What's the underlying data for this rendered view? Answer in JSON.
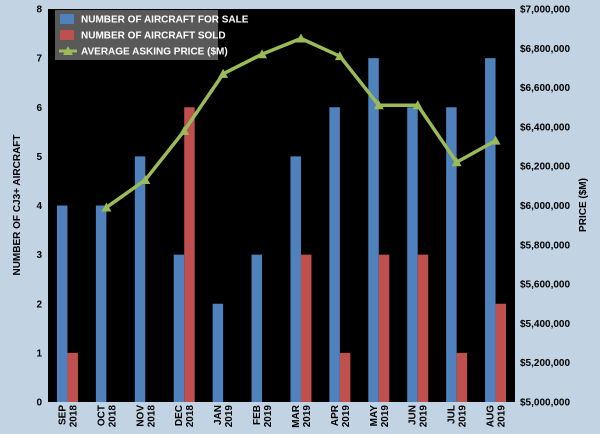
{
  "chart_data": {
    "type": "bar",
    "categories": [
      "SEP 2018",
      "OCT 2018",
      "NOV 2018",
      "DEC 2018",
      "JAN 2019",
      "FEB 2019",
      "MAR 2019",
      "APR 2019",
      "MAY 2019",
      "JUN 2019",
      "JUL 2019",
      "AUG 2019"
    ],
    "categories_top": [
      "SEP",
      "OCT",
      "NOV",
      "DEC",
      "JAN",
      "FEB",
      "MAR",
      "APR",
      "MAY",
      "JUN",
      "JUL",
      "AUG"
    ],
    "categories_bottom": [
      "2018",
      "2018",
      "2018",
      "2018",
      "2019",
      "2019",
      "2019",
      "2019",
      "2019",
      "2019",
      "2019",
      "2019"
    ],
    "series": [
      {
        "name": "NUMBER OF AIRCRAFT FOR SALE",
        "type": "bar",
        "axis": "left",
        "color": "#4f81bd",
        "values": [
          4,
          4,
          5,
          3,
          2,
          3,
          5,
          6,
          7,
          6,
          6,
          7
        ]
      },
      {
        "name": "NUMBER OF AIRCRAFT SOLD",
        "type": "bar",
        "axis": "left",
        "color": "#c0504d",
        "values": [
          1,
          0,
          0,
          6,
          0,
          0,
          3,
          1,
          3,
          3,
          1,
          2
        ]
      },
      {
        "name": "AVERAGE ASKING PRICE ($M)",
        "type": "line",
        "axis": "right",
        "color": "#9bbb59",
        "values": [
          null,
          5990000,
          6130000,
          6380000,
          6670000,
          6770000,
          6850000,
          6760000,
          6510000,
          6510000,
          6220000,
          6330000
        ]
      }
    ],
    "ylabel": "NUMBER OF CJ3+ AIRCRAFT",
    "ylim": [
      0,
      8
    ],
    "yticks": [
      "0",
      "1",
      "2",
      "3",
      "4",
      "5",
      "6",
      "7",
      "8"
    ],
    "y2label": "PRICE ($M)",
    "y2lim": [
      5000000,
      7000000
    ],
    "y2ticks": [
      "$5,000,000",
      "$5,200,000",
      "$5,400,000",
      "$5,600,000",
      "$5,800,000",
      "$6,000,000",
      "$6,200,000",
      "$6,400,000",
      "$6,600,000",
      "$6,800,000",
      "$7,000,000"
    ],
    "legend_position": "top-left",
    "grid": false,
    "plot_background": "#000000",
    "page_background": "#c2d4e4"
  }
}
